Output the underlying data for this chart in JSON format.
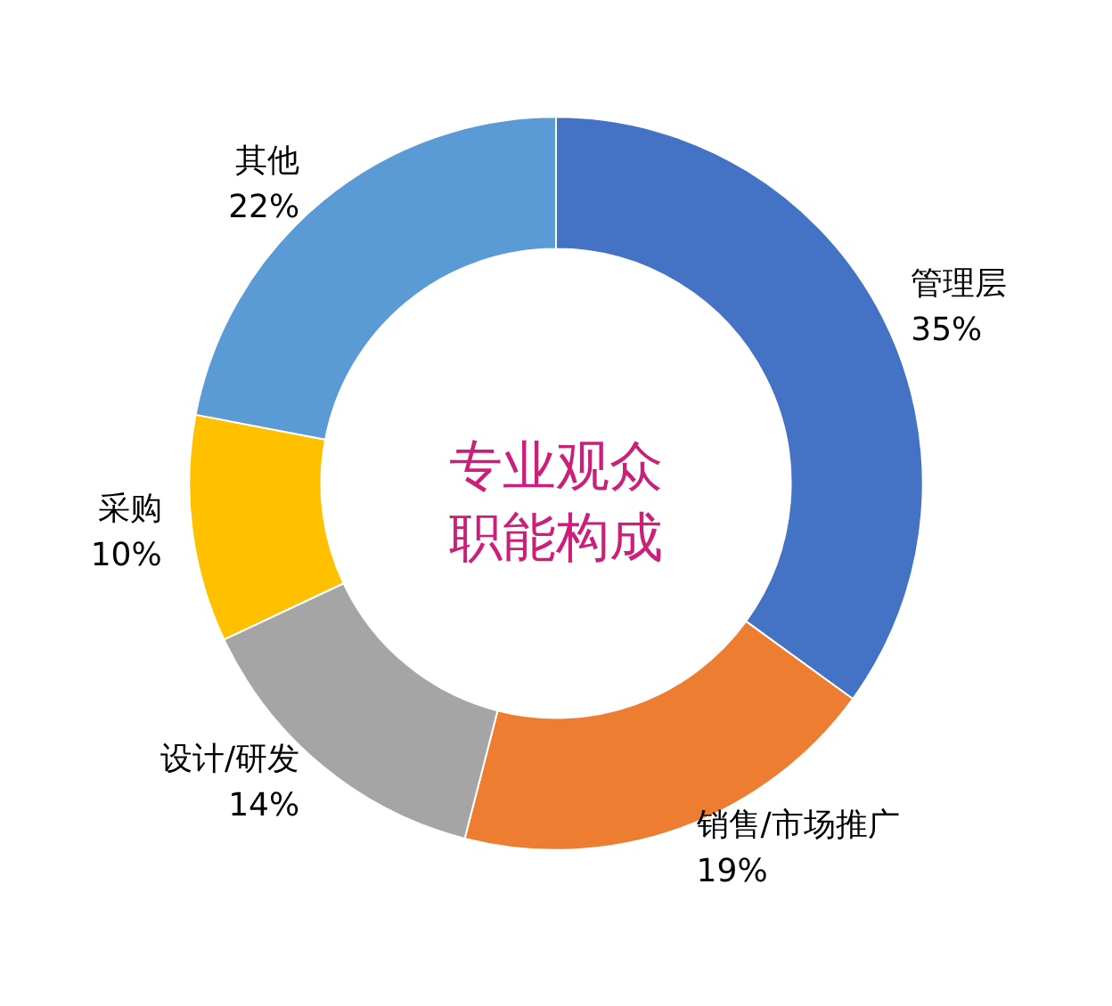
{
  "chart_data": {
    "type": "donut",
    "title": "专业观众职能构成",
    "categories": [
      "管理层",
      "销售/市场推广",
      "设计/研发",
      "采购",
      "其他"
    ],
    "values": [
      35,
      19,
      14,
      10,
      22
    ],
    "value_labels": [
      "35%",
      "19%",
      "14%",
      "10%",
      "22%"
    ],
    "colors": [
      "#4472c4",
      "#ed7d31",
      "#a5a5a5",
      "#ffc000",
      "#5b9bd5"
    ],
    "legend": false
  }
}
